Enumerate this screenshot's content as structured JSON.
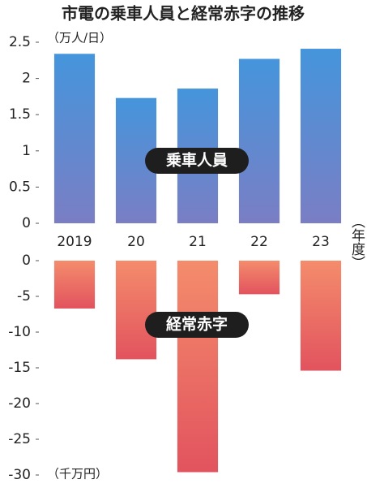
{
  "chart_data": [
    {
      "type": "bar",
      "title": "市電の乗車人員と経常赤字の推移",
      "y_label": "（万人/日）",
      "annotation": "乗車人員",
      "xlabel": "（年度）",
      "categories": [
        "2019",
        "20",
        "21",
        "22",
        "23"
      ],
      "values": [
        2.34,
        1.73,
        1.86,
        2.27,
        2.41
      ],
      "color": [
        "#4595dc",
        "#7a7ec4"
      ],
      "ylim": [
        0,
        2.5
      ],
      "yticks": [
        0,
        0.5,
        1,
        1.5,
        2,
        2.5
      ]
    },
    {
      "type": "bar",
      "y_label": "（千万円）",
      "annotation": "経常赤字",
      "values": [
        -6.7,
        -13.8,
        -29.6,
        -4.7,
        -15.4
      ],
      "color": [
        "#f48c6c",
        "#e2535e"
      ],
      "ylim": [
        -30,
        0
      ],
      "yticks": [
        0,
        -5,
        -10,
        -15,
        -20,
        -25,
        -30
      ]
    }
  ]
}
